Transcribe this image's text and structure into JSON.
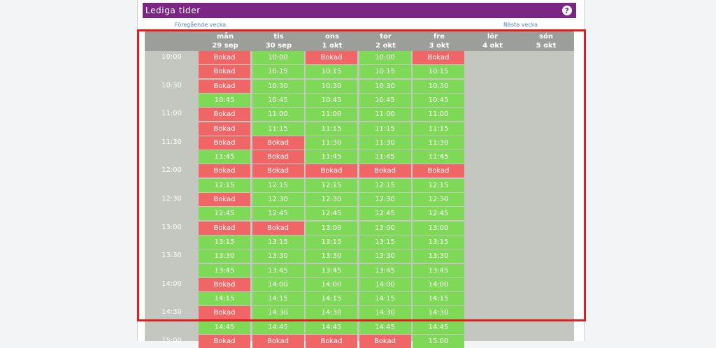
{
  "header": {
    "title": "Lediga tider",
    "help_icon": "?"
  },
  "nav": {
    "prev_week": "Föregående vecka",
    "next_week": "Nästa vecka"
  },
  "days": [
    {
      "name": "mån",
      "date": "29 sep"
    },
    {
      "name": "tis",
      "date": "30 sep"
    },
    {
      "name": "ons",
      "date": "1 okt"
    },
    {
      "name": "tor",
      "date": "2 okt"
    },
    {
      "name": "fre",
      "date": "3 okt"
    },
    {
      "name": "lör",
      "date": "4 okt"
    },
    {
      "name": "sön",
      "date": "5 okt"
    }
  ],
  "time_labels": [
    "10:00",
    "10:30",
    "11:00",
    "11:30",
    "12:00",
    "12:30",
    "13:00",
    "13:30",
    "14:00",
    "14:30",
    "15:00"
  ],
  "slot_times": [
    "10:00",
    "10:15",
    "10:30",
    "10:45",
    "11:00",
    "11:15",
    "11:30",
    "11:45",
    "12:00",
    "12:15",
    "12:30",
    "12:45",
    "13:00",
    "13:15",
    "13:30",
    "13:45",
    "14:00",
    "14:15",
    "14:30",
    "14:45",
    "15:00"
  ],
  "booked_label": "Bokad",
  "booked": [
    [
      0,
      1,
      2,
      4,
      5,
      6,
      8,
      10,
      12,
      16,
      18,
      20
    ],
    [
      6,
      7,
      8,
      12,
      20
    ],
    [
      0,
      8,
      20
    ],
    [
      8,
      20
    ],
    [
      0,
      8
    ]
  ],
  "colors": {
    "free": "#7ed957",
    "booked": "#f06565",
    "header": "#7a2682"
  }
}
